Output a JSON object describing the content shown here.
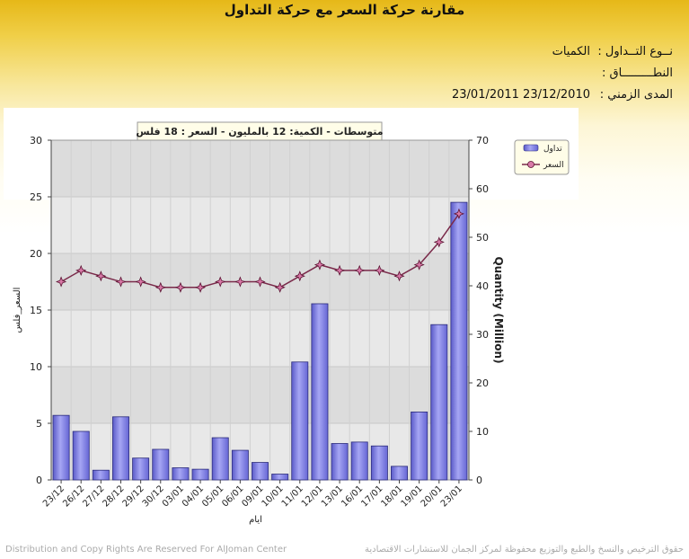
{
  "header": {
    "title": "مقارنة حركة السعر مع حركة التداول",
    "type_label": "نــوع التــداول :",
    "type_value": "الكميات",
    "scope_label": "النطـــــــــاق :",
    "scope_value": "",
    "period_label": "المدى الزمني :",
    "period_value": "23/01/2011 23/12/2010"
  },
  "chart_data": {
    "type": "bar+line",
    "subtitle": "متوسطات - الكمية: 12 بالمليون  -  السعر : 18 فلس",
    "xlabel": "ايام",
    "ylabel_left": "السعر_فلس",
    "ylabel_right": "Quantity (Million)",
    "ylim_left": [
      0,
      30
    ],
    "ylim_right": [
      0,
      70
    ],
    "yticks_left": [
      "0",
      "5",
      "10",
      "15",
      "20",
      "25",
      "30"
    ],
    "yticks_right": [
      "0",
      "10",
      "20",
      "30",
      "40",
      "50",
      "60",
      "70"
    ],
    "grid": true,
    "legend_position": "top-right",
    "categories": [
      "23/12",
      "26/12",
      "27/12",
      "28/12",
      "29/12",
      "30/12",
      "03/01",
      "04/01",
      "05/01",
      "06/01",
      "09/01",
      "10/01",
      "11/01",
      "12/01",
      "13/01",
      "16/01",
      "17/01",
      "18/01",
      "19/01",
      "20/01",
      "23/01"
    ],
    "series": [
      {
        "name": "تداول",
        "type": "bar",
        "axis": "right",
        "color": "#8080e8",
        "values": [
          13.3,
          10.0,
          2.0,
          13.0,
          4.5,
          6.3,
          2.5,
          2.2,
          8.7,
          6.1,
          3.6,
          1.2,
          24.3,
          36.3,
          7.5,
          7.8,
          7.0,
          2.8,
          14.0,
          32.0,
          57.2
        ]
      },
      {
        "name": "السعر",
        "type": "line",
        "axis": "left",
        "color": "#7a2a4a",
        "values": [
          17.5,
          18.5,
          18.0,
          17.5,
          17.5,
          17.0,
          17.0,
          17.0,
          17.5,
          17.5,
          17.5,
          17.0,
          18.0,
          19.0,
          18.5,
          18.5,
          18.5,
          18.0,
          19.0,
          21.0,
          23.5
        ]
      }
    ]
  },
  "footer": {
    "left": "Distribution and Copy Rights Are Reserved For AlJoman Center",
    "right": "حقوق الترخيص والنسخ والطبع والتوزيع محفوظة لمركز الجمان للاستشارات الاقتصادية"
  }
}
